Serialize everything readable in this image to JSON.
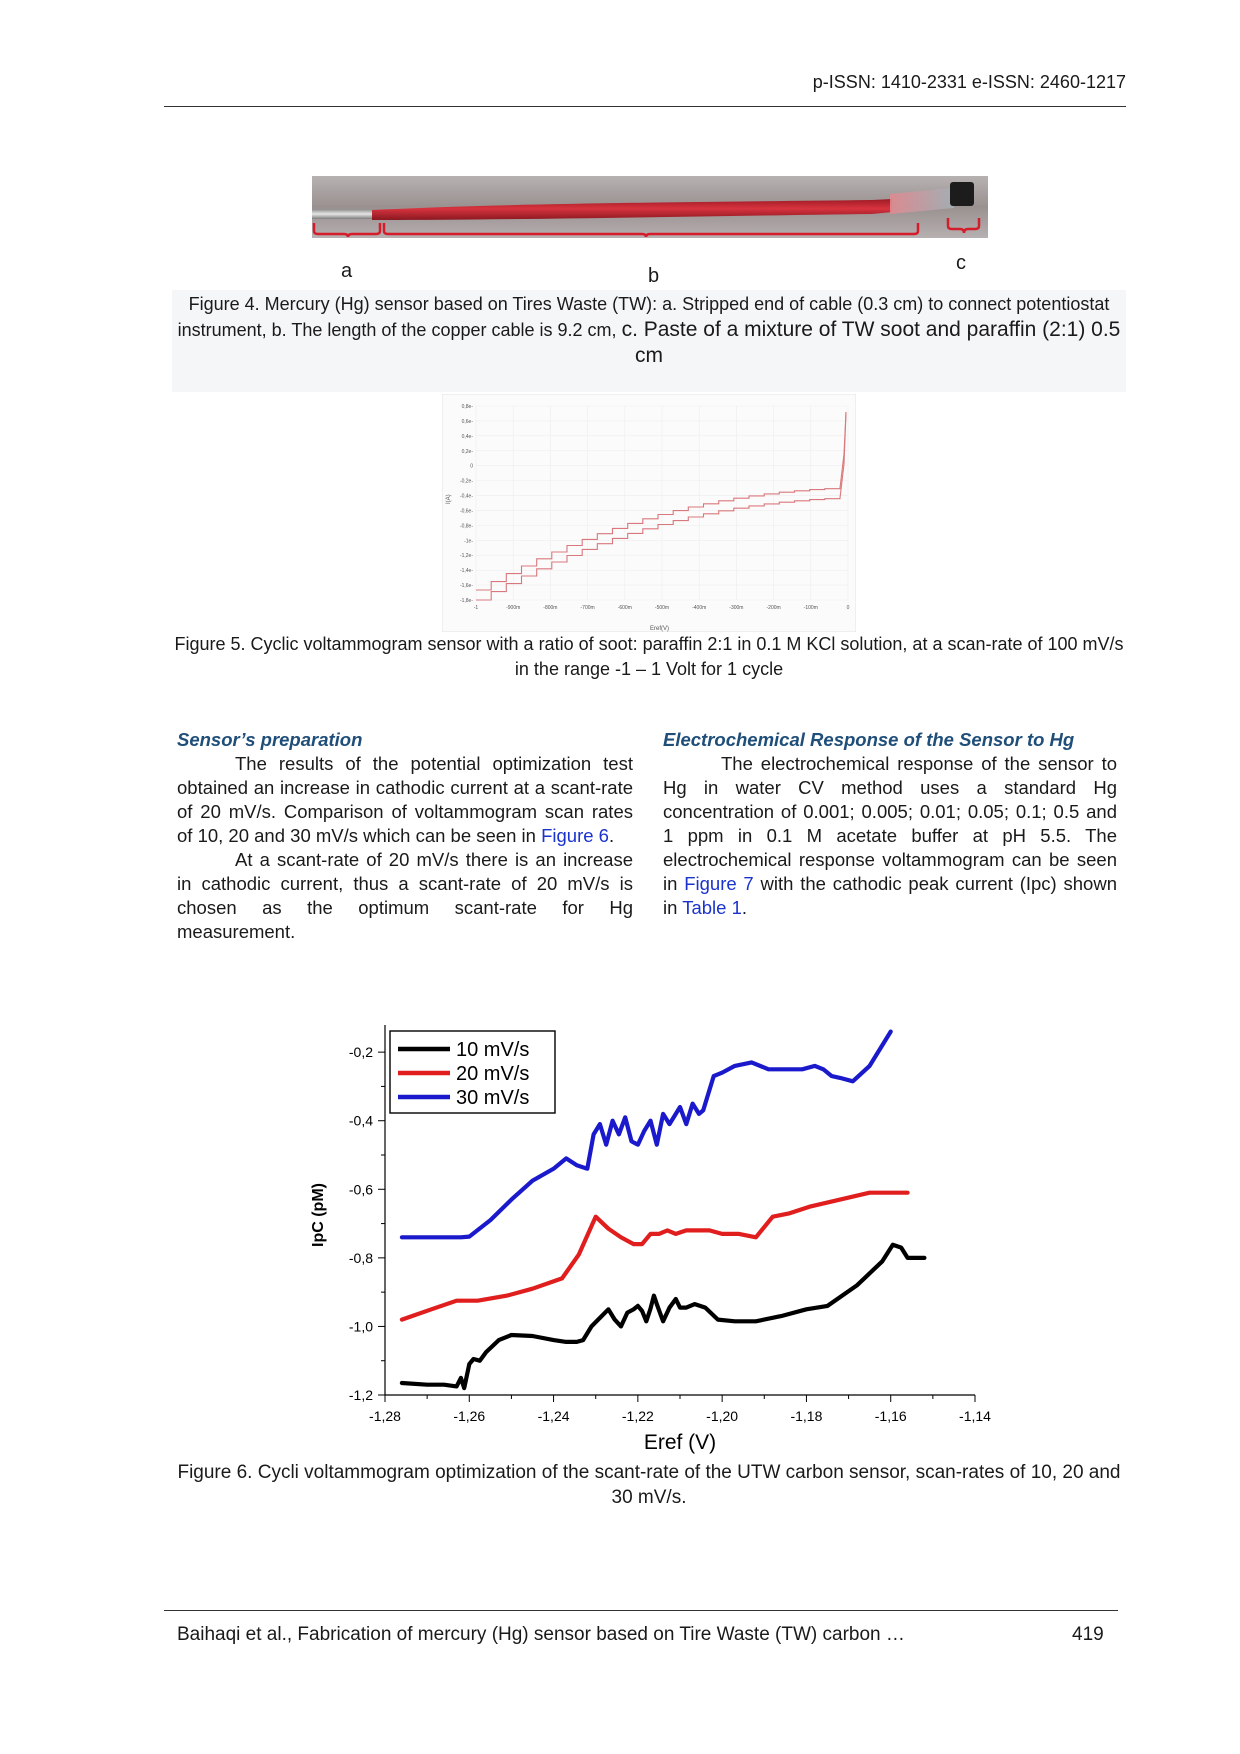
{
  "header": {
    "issn": "p-ISSN: 1410-2331  e-ISSN: 2460-1217"
  },
  "figure4": {
    "labels": {
      "a": "a",
      "b": "b",
      "c": "c"
    },
    "caption_part1": "Figure 4. Mercury (Hg) sensor based on Tires Waste (TW):  a. Stripped end of cable (0.3 cm) to connect potentiostat instrument, b. The length of the copper cable is 9.2 cm,",
    "caption_part2": "c. Paste of a mixture of TW soot and paraffin (2:1) 0.5 cm",
    "colors": {
      "cable": "#c92a35",
      "bracket": "#d51c2a",
      "stripped": "#8c8c8c",
      "tip": "#1c1c1c"
    }
  },
  "figure5": {
    "caption": "Figure 5. Cyclic voltammogram sensor with a ratio of soot: paraffin 2:1 in 0.1 M KCl solution, at a scan-rate of 100 mV/s in the range -1 – 1 Volt for 1 cycle",
    "y_ticks": [
      "0,8e-",
      "0,6e-",
      "0,4e-",
      "0,2e-",
      "0",
      "-0,2e-",
      "-0,4e-",
      "-0,6e-",
      "-0,8e-",
      "-1e-",
      "-1,2e-",
      "-1,4e-",
      "-1,6e-",
      "-1,8e-"
    ],
    "x_ticks": [
      "-1",
      "-900m",
      "-800m",
      "-700m",
      "-600m",
      "-500m",
      "-400m",
      "-300m",
      "-200m",
      "-100m",
      "0"
    ],
    "xlabel": "Eref(V)",
    "ylabel": "I(A)",
    "colors": {
      "trace": "#d9787c",
      "grid": "#eeeeee"
    }
  },
  "left_column": {
    "heading": "Sensor’s preparation",
    "p1_text": "The results of the potential optimization test obtained an increase in cathodic current at a scant-rate of 20 mV/s. Comparison of voltammogram scan rates of 10, 20 and 30 mV/s which can be seen in",
    "p1_link": "Figure 6",
    "p1_end": ".",
    "p2": "At a scant-rate of 20 mV/s there is an increase in cathodic current, thus a scant-rate of 20 mV/s is chosen as the optimum scant-rate for Hg measurement."
  },
  "right_column": {
    "heading": "Electrochemical Response of the Sensor to Hg",
    "p1_text": "The electrochemical response of the sensor to Hg in water CV method uses a standard Hg concentration of 0.001; 0.005; 0.01; 0.05; 0.1; 0.5 and 1 ppm in 0.1 M acetate buffer at pH 5.5. The electrochemical response voltammogram can be seen in",
    "p1_link1": "Figure 7",
    "p1_mid": "with the cathodic peak current (Ipc) shown in",
    "p1_link2": "Table 1",
    "p1_end": "."
  },
  "chart_data": {
    "type": "line",
    "title": "",
    "xlabel": "Eref (V)",
    "ylabel": "IpC (pM)",
    "xlim": [
      -1.28,
      -1.14
    ],
    "ylim": [
      -1.2,
      -0.15
    ],
    "x_ticks": [
      -1.28,
      -1.26,
      -1.24,
      -1.22,
      -1.2,
      -1.18,
      -1.16,
      -1.14
    ],
    "x_tick_labels": [
      "-1,28",
      "-1,26",
      "-1,24",
      "-1,22",
      "-1,20",
      "-1,18",
      "-1,16",
      "-1,14"
    ],
    "y_ticks": [
      -0.2,
      -0.4,
      -0.6,
      -0.8,
      -1.0,
      -1.2
    ],
    "y_tick_labels": [
      "-0,2",
      "-0,4",
      "-0,6",
      "-0,8",
      "-1,0",
      "-1,2"
    ],
    "legend_position": "top-left",
    "series": [
      {
        "name": "10 mV/s",
        "color": "#000000",
        "x": [
          -1.276,
          -1.27,
          -1.266,
          -1.263,
          -1.262,
          -1.2612,
          -1.26,
          -1.259,
          -1.2575,
          -1.256,
          -1.253,
          -1.25,
          -1.245,
          -1.24,
          -1.237,
          -1.2345,
          -1.233,
          -1.231,
          -1.229,
          -1.227,
          -1.2255,
          -1.224,
          -1.2225,
          -1.221,
          -1.22,
          -1.219,
          -1.218,
          -1.217,
          -1.2162,
          -1.2155,
          -1.214,
          -1.2125,
          -1.211,
          -1.21,
          -1.2085,
          -1.2065,
          -1.204,
          -1.201,
          -1.197,
          -1.192,
          -1.186,
          -1.18,
          -1.175,
          -1.168,
          -1.162,
          -1.1595,
          -1.1575,
          -1.156,
          -1.154,
          -1.152
        ],
        "y": [
          -1.165,
          -1.17,
          -1.17,
          -1.175,
          -1.15,
          -1.18,
          -1.11,
          -1.095,
          -1.1,
          -1.075,
          -1.04,
          -1.025,
          -1.028,
          -1.04,
          -1.045,
          -1.045,
          -1.04,
          -1.0,
          -0.975,
          -0.95,
          -0.98,
          -1.0,
          -0.96,
          -0.95,
          -0.94,
          -0.955,
          -0.985,
          -0.948,
          -0.91,
          -0.935,
          -0.985,
          -0.945,
          -0.92,
          -0.945,
          -0.945,
          -0.935,
          -0.945,
          -0.98,
          -0.985,
          -0.985,
          -0.97,
          -0.95,
          -0.94,
          -0.88,
          -0.81,
          -0.762,
          -0.77,
          -0.8,
          -0.8,
          -0.8
        ]
      },
      {
        "name": "20 mV/s",
        "color": "#e01e1e",
        "x": [
          -1.276,
          -1.269,
          -1.263,
          -1.258,
          -1.251,
          -1.245,
          -1.238,
          -1.234,
          -1.23,
          -1.227,
          -1.224,
          -1.221,
          -1.219,
          -1.217,
          -1.215,
          -1.213,
          -1.211,
          -1.2085,
          -1.206,
          -1.203,
          -1.2,
          -1.196,
          -1.192,
          -1.188,
          -1.184,
          -1.179,
          -1.172,
          -1.165,
          -1.156
        ],
        "y": [
          -0.98,
          -0.95,
          -0.925,
          -0.925,
          -0.91,
          -0.89,
          -0.86,
          -0.79,
          -0.68,
          -0.715,
          -0.74,
          -0.76,
          -0.76,
          -0.73,
          -0.73,
          -0.72,
          -0.73,
          -0.72,
          -0.72,
          -0.72,
          -0.73,
          -0.73,
          -0.74,
          -0.68,
          -0.67,
          -0.65,
          -0.63,
          -0.61,
          -0.61
        ]
      },
      {
        "name": "30 mV/s",
        "color": "#1a1acc",
        "x": [
          -1.276,
          -1.268,
          -1.262,
          -1.26,
          -1.255,
          -1.25,
          -1.245,
          -1.24,
          -1.237,
          -1.2345,
          -1.232,
          -1.2305,
          -1.229,
          -1.2275,
          -1.226,
          -1.2245,
          -1.223,
          -1.2215,
          -1.22,
          -1.2185,
          -1.217,
          -1.2155,
          -1.214,
          -1.2125,
          -1.211,
          -1.21,
          -1.2085,
          -1.207,
          -1.2055,
          -1.2045,
          -1.202,
          -1.2,
          -1.197,
          -1.193,
          -1.189,
          -1.185,
          -1.181,
          -1.178,
          -1.176,
          -1.174,
          -1.172,
          -1.169,
          -1.165,
          -1.16
        ],
        "y": [
          -0.74,
          -0.74,
          -0.74,
          -0.738,
          -0.69,
          -0.63,
          -0.575,
          -0.54,
          -0.51,
          -0.53,
          -0.54,
          -0.44,
          -0.41,
          -0.47,
          -0.4,
          -0.44,
          -0.39,
          -0.46,
          -0.47,
          -0.43,
          -0.4,
          -0.47,
          -0.38,
          -0.41,
          -0.38,
          -0.36,
          -0.41,
          -0.35,
          -0.38,
          -0.37,
          -0.27,
          -0.26,
          -0.24,
          -0.23,
          -0.25,
          -0.25,
          -0.25,
          -0.24,
          -0.25,
          -0.27,
          -0.275,
          -0.285,
          -0.24,
          -0.14
        ]
      }
    ]
  },
  "figure6": {
    "caption": "Figure 6. Cycli voltammogram optimization of the scant-rate of the UTW carbon sensor, scan-rates of 10, 20 and 30 mV/s."
  },
  "footer": {
    "running_title": "Baihaqi et al., Fabrication of mercury (Hg) sensor based on Tire Waste (TW) carbon …",
    "page_number": "419"
  }
}
